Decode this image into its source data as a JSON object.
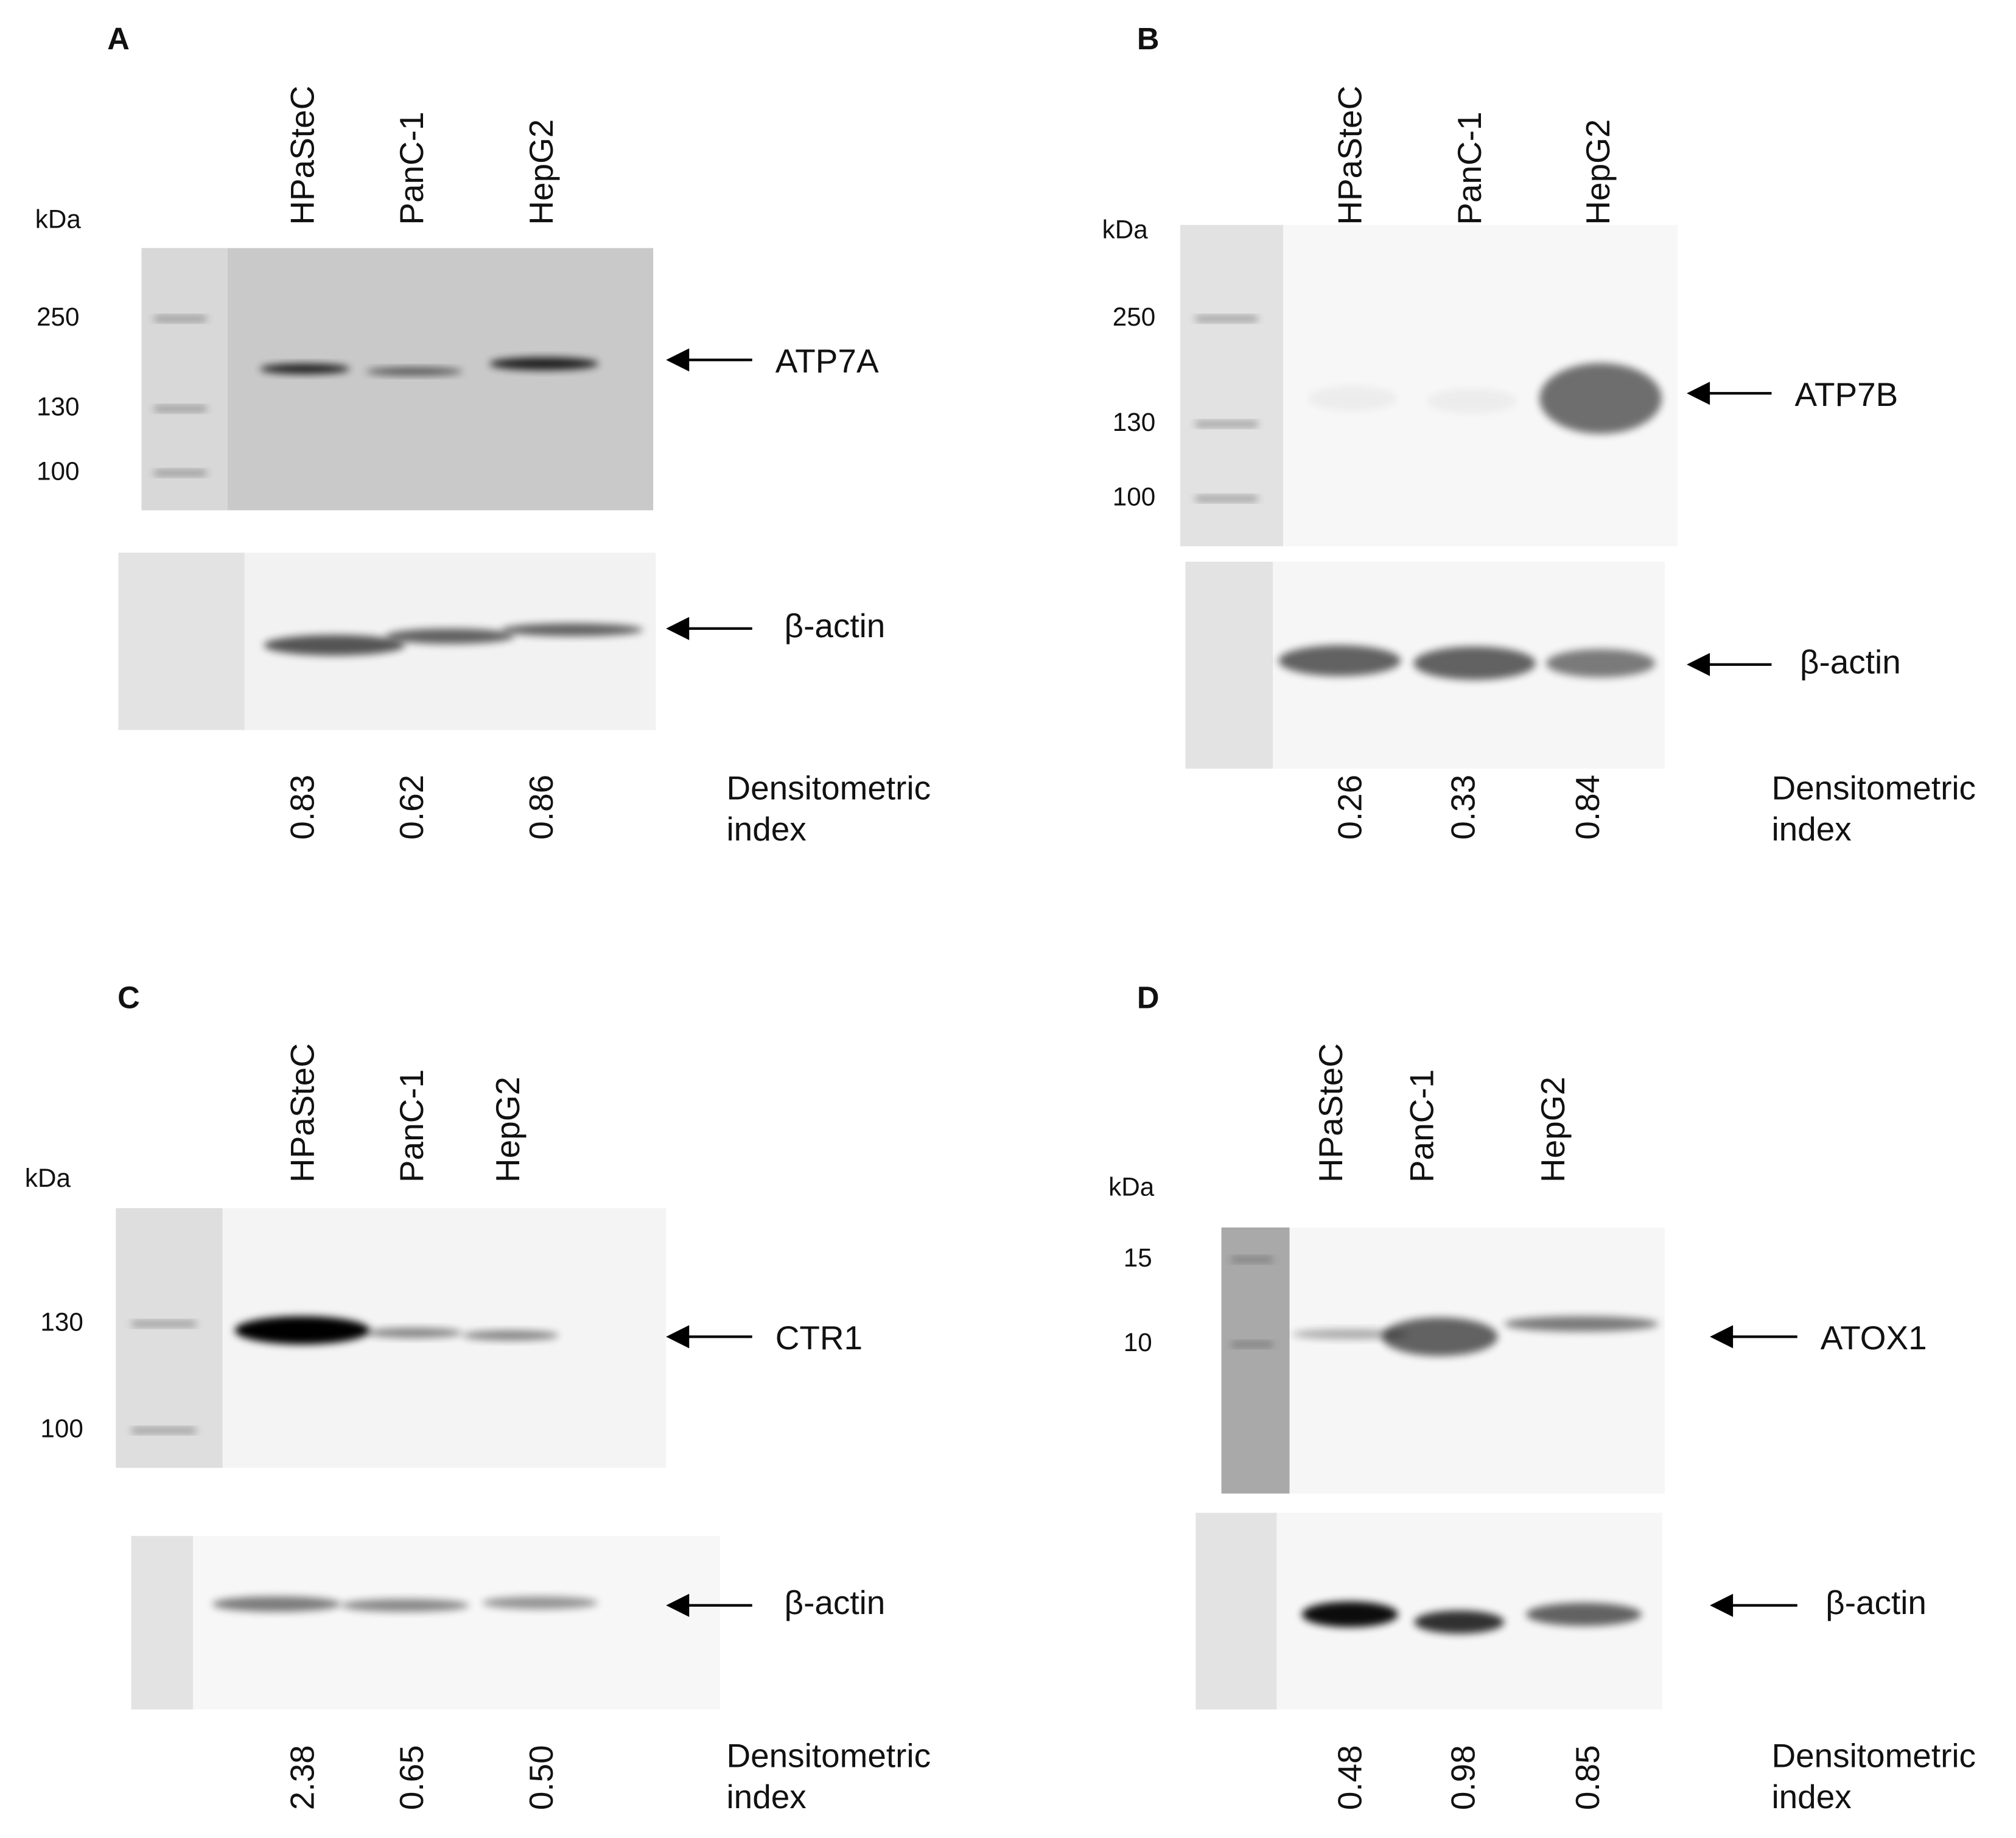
{
  "panels": [
    {
      "letter": "A",
      "kda_label": "kDa",
      "lanes": [
        "HPaSteC",
        "PanC-1",
        "HepG2"
      ],
      "markers": [
        "250",
        "130",
        "100"
      ],
      "target": "ATP7A",
      "loading_control": "β-actin",
      "densitometric_values": [
        "0.83",
        "0.62",
        "0.86"
      ],
      "densitometric_label": [
        "Densitometric",
        "index"
      ]
    },
    {
      "letter": "B",
      "kda_label": "kDa",
      "lanes": [
        "HPaSteC",
        "PanC-1",
        "HepG2"
      ],
      "markers": [
        "250",
        "130",
        "100"
      ],
      "target": "ATP7B",
      "loading_control": "β-actin",
      "densitometric_values": [
        "0.26",
        "0.33",
        "0.84"
      ],
      "densitometric_label": [
        "Densitometric",
        "index"
      ]
    },
    {
      "letter": "C",
      "kda_label": "kDa",
      "lanes": [
        "HPaSteC",
        "PanC-1",
        "HepG2"
      ],
      "markers": [
        "130",
        "100"
      ],
      "target": "CTR1",
      "loading_control": "β-actin",
      "densitometric_values": [
        "2.38",
        "0.65",
        "0.50"
      ],
      "densitometric_label": [
        "Densitometric",
        "index"
      ]
    },
    {
      "letter": "D",
      "kda_label": "kDa",
      "lanes": [
        "HPaSteC",
        "PanC-1",
        "HepG2"
      ],
      "markers": [
        "15",
        "10"
      ],
      "target": "ATOX1",
      "loading_control": "β-actin",
      "densitometric_values": [
        "0.48",
        "0.98",
        "0.85"
      ],
      "densitometric_label": [
        "Densitometric",
        "index"
      ]
    }
  ]
}
